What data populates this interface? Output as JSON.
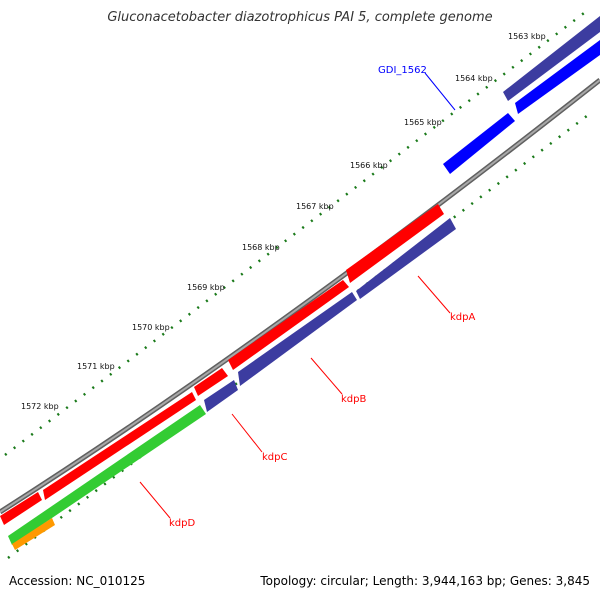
{
  "title": "Gluconacetobacter diazotrophicus PAI 5, complete genome",
  "footer": {
    "accession": "Accession: NC_010125",
    "topology": "Topology: circular; Length: 3,944,163 bp; Genes: 3,845"
  },
  "ticks": [
    "1563 kbp",
    "1564 kbp",
    "1565 kbp",
    "1566 kbp",
    "1567 kbp",
    "1568 kbp",
    "1569 kbp",
    "1570 kbp",
    "1571 kbp",
    "1572 kbp"
  ],
  "gene_labels": [
    {
      "text": "GDI_1562",
      "color": "#0000ff"
    },
    {
      "text": "kdpA",
      "color": "#ff0000"
    },
    {
      "text": "kdpB",
      "color": "#ff0000"
    },
    {
      "text": "kdpC",
      "color": "#ff0000"
    },
    {
      "text": "kdpD",
      "color": "#ff0000"
    }
  ],
  "colors": {
    "backbone": "#808080",
    "red": "#ff0000",
    "navy": "#3c3ca0",
    "blue": "#0000ff",
    "green": "#33cc33",
    "orange": "#ff9900",
    "ticks": "#1a7a1a"
  }
}
